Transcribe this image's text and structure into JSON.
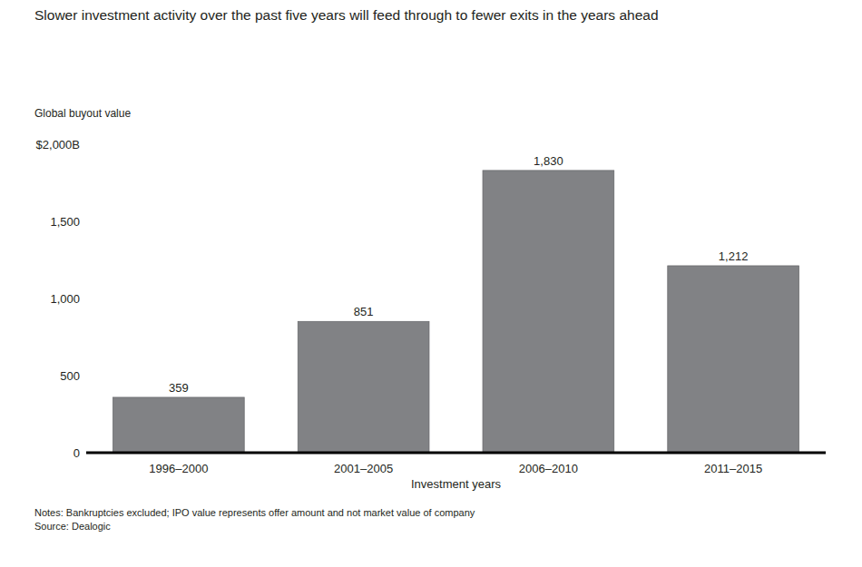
{
  "chart_data": {
    "type": "bar",
    "title": "Slower investment activity over the past five years will feed through to fewer exits in the years ahead",
    "y_label": "Global buyout value",
    "x_label": "Investment years",
    "categories": [
      "1996–2000",
      "2001–2005",
      "2006–2010",
      "2011–2015"
    ],
    "values": [
      359,
      851,
      1830,
      1212
    ],
    "value_labels": [
      "359",
      "851",
      "1,830",
      "1,212"
    ],
    "color": "#818285",
    "ylim": [
      0,
      2000
    ],
    "yticks": [
      0,
      500,
      {
        "value": 1000,
        "label": "1,000"
      },
      {
        "value": 1500,
        "label": "1,500"
      },
      {
        "value": 2000,
        "label": "$2,000B"
      }
    ],
    "grid": false,
    "data_labels": true,
    "notes": [
      "Notes: Bankruptcies excluded; IPO value represents offer amount and not market value of company",
      "Source: Dealogic"
    ]
  }
}
